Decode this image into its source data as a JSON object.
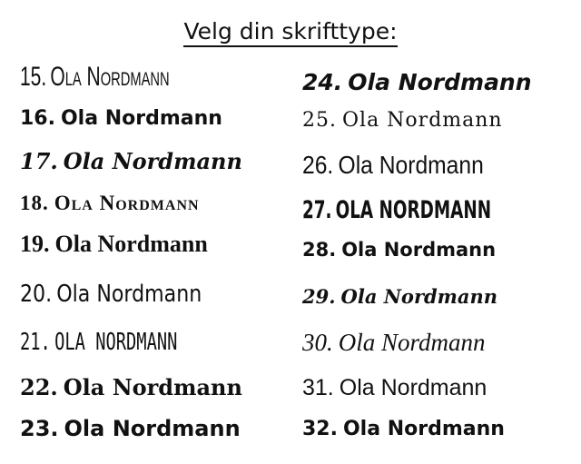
{
  "title": "Velg din skrifttype:",
  "fonts": [
    {
      "num": "15.",
      "text": "Ola Nordmann"
    },
    {
      "num": "16.",
      "text": "Ola Nordmann"
    },
    {
      "num": "17.",
      "text": "Ola Nordmann"
    },
    {
      "num": "18.",
      "text": "Ola Nordmann"
    },
    {
      "num": "19.",
      "text": "Ola Nordmann"
    },
    {
      "num": "20.",
      "text": "Ola Nordmann"
    },
    {
      "num": "21.",
      "text": "OLA NORDMANN"
    },
    {
      "num": "22.",
      "text": "Ola Nordmann"
    },
    {
      "num": "23.",
      "text": "Ola Nordmann"
    },
    {
      "num": "24.",
      "text": "Ola Nordmann"
    },
    {
      "num": "25.",
      "text": "Ola Nordmann"
    },
    {
      "num": "26.",
      "text": "Ola Nordmann"
    },
    {
      "num": "27.",
      "text": "OLA NORDMANN"
    },
    {
      "num": "28.",
      "text": "Ola Nordmann"
    },
    {
      "num": "29.",
      "text": "Ola Nordmann"
    },
    {
      "num": "30.",
      "text": "Ola Nordmann"
    },
    {
      "num": "31.",
      "text": "Ola Nordmann"
    },
    {
      "num": "32.",
      "text": "Ola Nordmann"
    }
  ]
}
